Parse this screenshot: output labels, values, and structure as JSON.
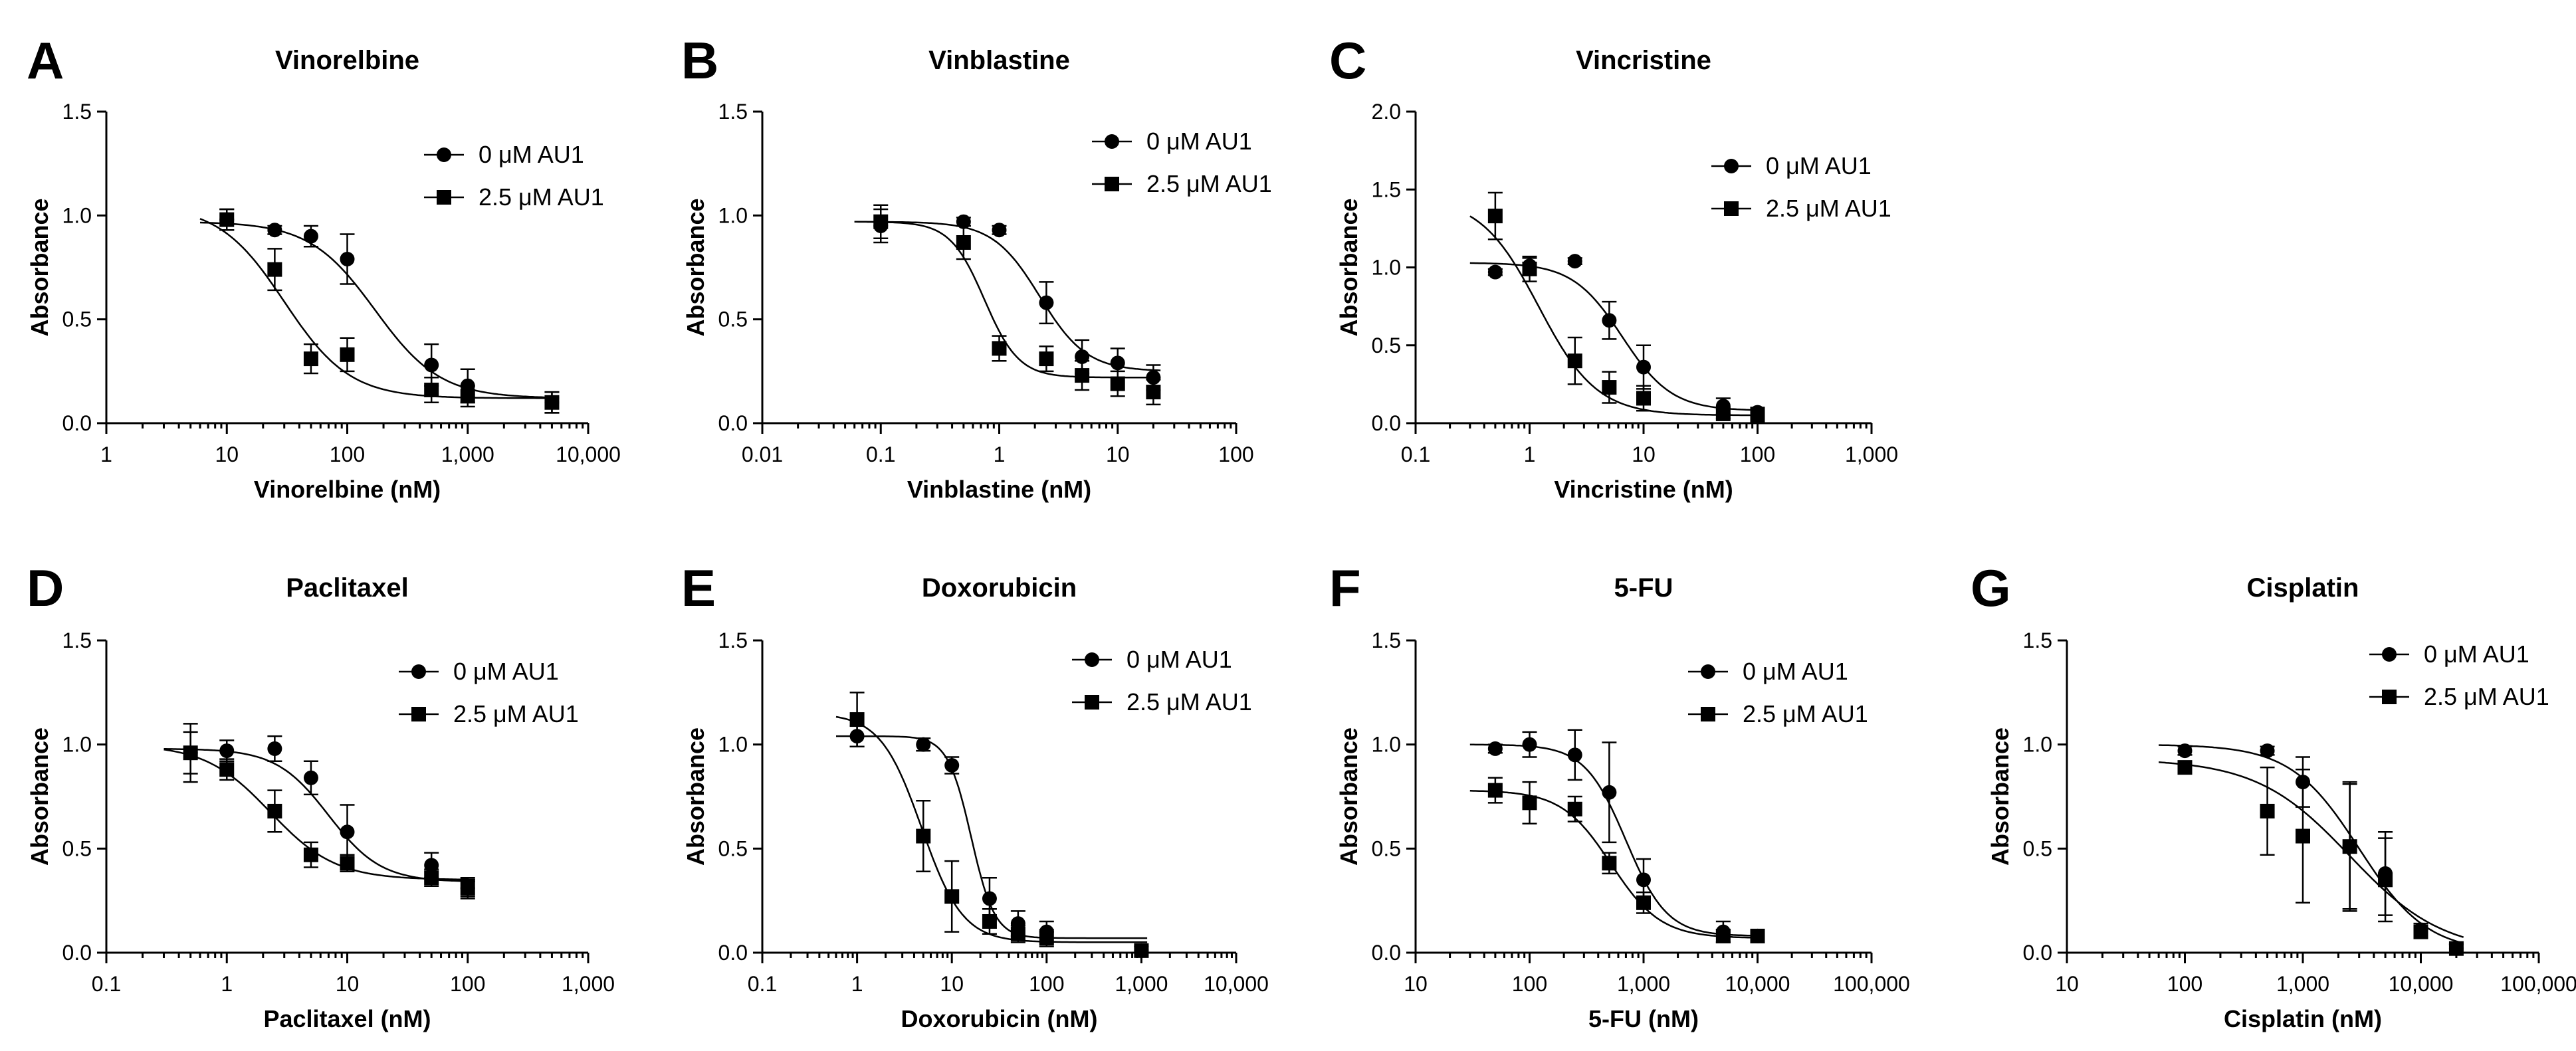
{
  "chart_data": [
    {
      "letter": "A",
      "type": "line",
      "title": "Vinorelbine",
      "xlabel": "Vinorelbine (nM)",
      "ylabel": "Absorbance",
      "xscale": "log",
      "xlim": [
        1,
        10000
      ],
      "ylim": [
        0,
        1.5
      ],
      "xticks": [
        1,
        10,
        100,
        1000,
        10000
      ],
      "xtick_labels": [
        "1",
        "10",
        "100",
        "1,000",
        "10,000"
      ],
      "yticks": [
        0,
        0.5,
        1.0,
        1.5
      ],
      "ytick_labels": [
        "0.0",
        "0.5",
        "1.0",
        "1.5"
      ],
      "legend_position": "top-right",
      "series": [
        {
          "name": "0 μM AU1",
          "marker": "circle",
          "x": [
            10,
            25,
            50,
            100,
            500,
            1000,
            5000
          ],
          "y": [
            0.98,
            0.93,
            0.9,
            0.79,
            0.28,
            0.18,
            0.1
          ],
          "err": [
            0.05,
            0.02,
            0.05,
            0.12,
            0.1,
            0.08,
            0.05
          ],
          "fit": {
            "top": 0.97,
            "bottom": 0.12,
            "ec50": 170,
            "hill": 1.6
          }
        },
        {
          "name": "2.5 μM AU1",
          "marker": "square",
          "x": [
            10,
            25,
            50,
            100,
            500,
            1000,
            5000
          ],
          "y": [
            0.98,
            0.74,
            0.31,
            0.33,
            0.16,
            0.13,
            0.1
          ],
          "err": [
            0.05,
            0.1,
            0.07,
            0.08,
            0.06,
            0.05,
            0.05
          ],
          "fit": {
            "top": 1.05,
            "bottom": 0.12,
            "ec50": 30,
            "hill": 1.6
          }
        }
      ]
    },
    {
      "letter": "B",
      "type": "line",
      "title": "Vinblastine",
      "xlabel": "Vinblastine (nM)",
      "ylabel": "Absorbance",
      "xscale": "log",
      "xlim": [
        0.01,
        100
      ],
      "ylim": [
        0,
        1.5
      ],
      "xticks": [
        0.01,
        0.1,
        1,
        10,
        100
      ],
      "xtick_labels": [
        "0.01",
        "0.1",
        "1",
        "10",
        "100"
      ],
      "yticks": [
        0,
        0.5,
        1.0,
        1.5
      ],
      "ytick_labels": [
        "0.0",
        "0.5",
        "1.0",
        "1.5"
      ],
      "legend_position": "top-right",
      "series": [
        {
          "name": "0 μM AU1",
          "marker": "circle",
          "x": [
            0.1,
            0.5,
            1,
            2.5,
            5,
            10,
            20
          ],
          "y": [
            0.95,
            0.97,
            0.93,
            0.58,
            0.32,
            0.29,
            0.22
          ],
          "err": [
            0.08,
            0.02,
            0.02,
            0.1,
            0.08,
            0.07,
            0.06
          ],
          "fit": {
            "top": 0.97,
            "bottom": 0.25,
            "ec50": 2.2,
            "hill": 2.2
          }
        },
        {
          "name": "2.5 μM AU1",
          "marker": "square",
          "x": [
            0.1,
            0.5,
            1,
            2.5,
            5,
            10,
            20
          ],
          "y": [
            0.97,
            0.87,
            0.36,
            0.31,
            0.23,
            0.19,
            0.15
          ],
          "err": [
            0.08,
            0.08,
            0.06,
            0.06,
            0.07,
            0.06,
            0.06
          ],
          "fit": {
            "top": 0.97,
            "bottom": 0.22,
            "ec50": 0.75,
            "hill": 3.0
          }
        }
      ]
    },
    {
      "letter": "C",
      "type": "line",
      "title": "Vincristine",
      "xlabel": "Vincristine (nM)",
      "ylabel": "Absorbance",
      "xscale": "log",
      "xlim": [
        0.1,
        1000
      ],
      "ylim": [
        0,
        2.0
      ],
      "xticks": [
        0.1,
        1,
        10,
        100,
        1000
      ],
      "xtick_labels": [
        "0.1",
        "1",
        "10",
        "100",
        "1,000"
      ],
      "yticks": [
        0,
        0.5,
        1.0,
        1.5,
        2.0
      ],
      "ytick_labels": [
        "0.0",
        "0.5",
        "1.0",
        "1.5",
        "2.0"
      ],
      "legend_position": "top-right",
      "series": [
        {
          "name": "0 μM AU1",
          "marker": "circle",
          "x": [
            0.5,
            1,
            2.5,
            5,
            10,
            50,
            100
          ],
          "y": [
            0.97,
            1.01,
            1.04,
            0.66,
            0.36,
            0.11,
            0.07
          ],
          "err": [
            0.02,
            0.05,
            0.02,
            0.12,
            0.14,
            0.05,
            0.03
          ],
          "fit": {
            "top": 1.03,
            "bottom": 0.08,
            "ec50": 6.5,
            "hill": 2.0
          }
        },
        {
          "name": "2.5 μM AU1",
          "marker": "square",
          "x": [
            0.5,
            1,
            2.5,
            5,
            10,
            50,
            100
          ],
          "y": [
            1.33,
            0.99,
            0.4,
            0.23,
            0.16,
            0.06,
            0.05
          ],
          "err": [
            0.15,
            0.08,
            0.15,
            0.1,
            0.08,
            0.03,
            0.02
          ],
          "fit": {
            "top": 1.45,
            "bottom": 0.05,
            "ec50": 1.2,
            "hill": 1.7
          }
        }
      ]
    },
    {
      "letter": "D",
      "type": "line",
      "title": "Paclitaxel",
      "xlabel": "Paclitaxel (nM)",
      "ylabel": "Absorbance",
      "xscale": "log",
      "xlim": [
        0.1,
        1000
      ],
      "ylim": [
        0,
        1.5
      ],
      "xticks": [
        0.1,
        1,
        10,
        100,
        1000
      ],
      "xtick_labels": [
        "0.1",
        "1",
        "10",
        "100",
        "1,000"
      ],
      "yticks": [
        0,
        0.5,
        1.0,
        1.5
      ],
      "ytick_labels": [
        "0.0",
        "0.5",
        "1.0",
        "1.5"
      ],
      "legend_position": "top-right",
      "series": [
        {
          "name": "0 μM AU1",
          "marker": "circle",
          "x": [
            0.5,
            1,
            2.5,
            5,
            10,
            50,
            100
          ],
          "y": [
            0.96,
            0.97,
            0.98,
            0.84,
            0.58,
            0.42,
            0.31
          ],
          "err": [
            0.14,
            0.05,
            0.06,
            0.08,
            0.13,
            0.06,
            0.05
          ],
          "fit": {
            "top": 0.98,
            "bottom": 0.34,
            "ec50": 7.0,
            "hill": 2.0
          }
        },
        {
          "name": "2.5 μM AU1",
          "marker": "square",
          "x": [
            0.5,
            1,
            2.5,
            5,
            10,
            50,
            100
          ],
          "y": [
            0.96,
            0.88,
            0.68,
            0.47,
            0.43,
            0.36,
            0.31
          ],
          "err": [
            0.1,
            0.05,
            0.1,
            0.06,
            0.04,
            0.04,
            0.04
          ],
          "fit": {
            "top": 1.0,
            "bottom": 0.35,
            "ec50": 2.3,
            "hill": 1.6
          }
        }
      ]
    },
    {
      "letter": "E",
      "type": "line",
      "title": "Doxorubicin",
      "xlabel": "Doxorubicin (nM)",
      "ylabel": "Absorbance",
      "xscale": "log",
      "xlim": [
        0.1,
        10000
      ],
      "ylim": [
        0,
        1.5
      ],
      "xticks": [
        0.1,
        1,
        10,
        100,
        1000,
        10000
      ],
      "xtick_labels": [
        "0.1",
        "1",
        "10",
        "100",
        "1,000",
        "10,000"
      ],
      "yticks": [
        0,
        0.5,
        1.0,
        1.5
      ],
      "ytick_labels": [
        "0.0",
        "0.5",
        "1.0",
        "1.5"
      ],
      "legend_position": "top-right",
      "series": [
        {
          "name": "0 μM AU1",
          "marker": "circle",
          "x": [
            1,
            5,
            10,
            25,
            50,
            100,
            1000
          ],
          "y": [
            1.04,
            1.0,
            0.9,
            0.26,
            0.14,
            0.1,
            0.01
          ],
          "err": [
            0.05,
            0.03,
            0.04,
            0.1,
            0.06,
            0.05,
            0.02
          ],
          "fit": {
            "top": 1.04,
            "bottom": 0.07,
            "ec50": 16,
            "hill": 3.5
          }
        },
        {
          "name": "2.5 μM AU1",
          "marker": "square",
          "x": [
            1,
            5,
            10,
            25,
            50,
            100,
            1000
          ],
          "y": [
            1.12,
            0.56,
            0.27,
            0.15,
            0.09,
            0.07,
            0.01
          ],
          "err": [
            0.13,
            0.17,
            0.17,
            0.06,
            0.04,
            0.04,
            0.02
          ],
          "fit": {
            "top": 1.15,
            "bottom": 0.05,
            "ec50": 4.8,
            "hill": 2.0
          }
        }
      ]
    },
    {
      "letter": "F",
      "type": "line",
      "title": "5-FU",
      "xlabel": "5-FU (nM)",
      "ylabel": "Absorbance",
      "xscale": "log",
      "xlim": [
        10,
        100000
      ],
      "ylim": [
        0,
        1.5
      ],
      "xticks": [
        10,
        100,
        1000,
        10000,
        100000
      ],
      "xtick_labels": [
        "10",
        "100",
        "1,000",
        "10,000",
        "100,000"
      ],
      "yticks": [
        0,
        0.5,
        1.0,
        1.5
      ],
      "ytick_labels": [
        "0.0",
        "0.5",
        "1.0",
        "1.5"
      ],
      "legend_position": "top-right",
      "series": [
        {
          "name": "0 μM AU1",
          "marker": "circle",
          "x": [
            50,
            100,
            250,
            500,
            1000,
            5000,
            10000
          ],
          "y": [
            0.98,
            1.0,
            0.95,
            0.77,
            0.35,
            0.1,
            0.08
          ],
          "err": [
            0.02,
            0.06,
            0.12,
            0.24,
            0.1,
            0.05,
            0.03
          ],
          "fit": {
            "top": 1.0,
            "bottom": 0.08,
            "ec50": 700,
            "hill": 2.4
          }
        },
        {
          "name": "2.5 μM AU1",
          "marker": "square",
          "x": [
            50,
            100,
            250,
            500,
            1000,
            5000,
            10000
          ],
          "y": [
            0.78,
            0.72,
            0.69,
            0.43,
            0.24,
            0.08,
            0.08
          ],
          "err": [
            0.06,
            0.1,
            0.06,
            0.05,
            0.05,
            0.03,
            0.03
          ],
          "fit": {
            "top": 0.78,
            "bottom": 0.07,
            "ec50": 520,
            "hill": 2.0
          }
        }
      ]
    },
    {
      "letter": "G",
      "type": "line",
      "title": "Cisplatin",
      "xlabel": "Cisplatin (nM)",
      "ylabel": "Absorbance",
      "xscale": "log",
      "xlim": [
        10,
        100000
      ],
      "ylim": [
        0,
        1.5
      ],
      "xticks": [
        10,
        100,
        1000,
        10000,
        100000
      ],
      "xtick_labels": [
        "10",
        "100",
        "1,000",
        "10,000",
        "100,000"
      ],
      "yticks": [
        0,
        0.5,
        1.0,
        1.5
      ],
      "ytick_labels": [
        "0.0",
        "0.5",
        "1.0",
        "1.5"
      ],
      "legend_position": "top-right",
      "series": [
        {
          "name": "0 μM AU1",
          "marker": "circle",
          "x": [
            100,
            500,
            1000,
            2500,
            5000,
            10000,
            20000
          ],
          "y": [
            0.97,
            0.97,
            0.82,
            0.51,
            0.38,
            0.11,
            0.02
          ],
          "err": [
            0.02,
            0.02,
            0.12,
            0.3,
            0.2,
            0.03,
            0.02
          ],
          "fit": {
            "top": 1.0,
            "bottom": 0.0,
            "ec50": 3000,
            "hill": 1.5
          }
        },
        {
          "name": "2.5 μM AU1",
          "marker": "square",
          "x": [
            100,
            500,
            1000,
            2500,
            5000,
            10000,
            20000
          ],
          "y": [
            0.89,
            0.68,
            0.56,
            0.51,
            0.35,
            0.1,
            0.02
          ],
          "err": [
            0.02,
            0.21,
            0.32,
            0.31,
            0.2,
            0.03,
            0.02
          ],
          "fit": {
            "top": 0.93,
            "bottom": 0.0,
            "ec50": 2500,
            "hill": 1.1
          }
        }
      ]
    }
  ]
}
